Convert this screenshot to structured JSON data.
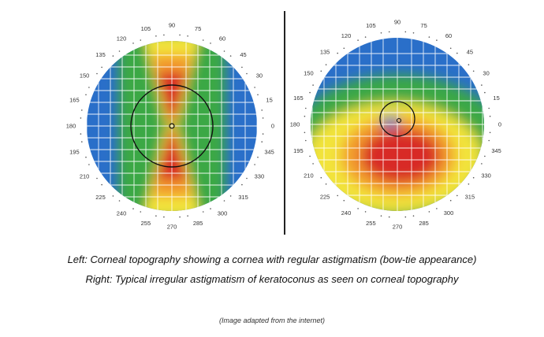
{
  "left_map": {
    "degree_labels": [
      {
        "deg": 0,
        "text": "0"
      },
      {
        "deg": 15,
        "text": "15"
      },
      {
        "deg": 30,
        "text": "30"
      },
      {
        "deg": 45,
        "text": "45"
      },
      {
        "deg": 60,
        "text": "60"
      },
      {
        "deg": 75,
        "text": "75"
      },
      {
        "deg": 90,
        "text": "90"
      },
      {
        "deg": 105,
        "text": "105"
      },
      {
        "deg": 120,
        "text": "120"
      },
      {
        "deg": 135,
        "text": "135"
      },
      {
        "deg": 150,
        "text": "150"
      },
      {
        "deg": 165,
        "text": "165"
      },
      {
        "deg": 180,
        "text": "180"
      },
      {
        "deg": 195,
        "text": "195"
      },
      {
        "deg": 210,
        "text": "210"
      },
      {
        "deg": 225,
        "text": "225"
      },
      {
        "deg": 240,
        "text": "240"
      },
      {
        "deg": 255,
        "text": "255"
      },
      {
        "deg": 270,
        "text": "270"
      },
      {
        "deg": 285,
        "text": "285"
      },
      {
        "deg": 300,
        "text": "300"
      },
      {
        "deg": 315,
        "text": "315"
      },
      {
        "deg": 330,
        "text": "330"
      },
      {
        "deg": 345,
        "text": "345"
      }
    ]
  },
  "right_map": {
    "degree_labels": [
      {
        "deg": 0,
        "text": "0"
      },
      {
        "deg": 15,
        "text": "15"
      },
      {
        "deg": 30,
        "text": "30"
      },
      {
        "deg": 45,
        "text": "45"
      },
      {
        "deg": 60,
        "text": "60"
      },
      {
        "deg": 75,
        "text": "75"
      },
      {
        "deg": 90,
        "text": "90"
      },
      {
        "deg": 105,
        "text": "105"
      },
      {
        "deg": 120,
        "text": "120"
      },
      {
        "deg": 135,
        "text": "135"
      },
      {
        "deg": 150,
        "text": "150"
      },
      {
        "deg": 165,
        "text": "165"
      },
      {
        "deg": 180,
        "text": "180"
      },
      {
        "deg": 195,
        "text": "195"
      },
      {
        "deg": 210,
        "text": "210"
      },
      {
        "deg": 225,
        "text": "225"
      },
      {
        "deg": 240,
        "text": "240"
      },
      {
        "deg": 255,
        "text": "255"
      },
      {
        "deg": 270,
        "text": "270"
      },
      {
        "deg": 285,
        "text": "285"
      },
      {
        "deg": 300,
        "text": "300"
      },
      {
        "deg": 315,
        "text": "315"
      },
      {
        "deg": 330,
        "text": "330"
      },
      {
        "deg": 345,
        "text": "345"
      }
    ]
  },
  "colors": {
    "blue": "#2a6fc9",
    "green": "#3aa844",
    "yellow": "#f2e33a",
    "orange": "#f29a2e",
    "red": "#d82a25",
    "grid": "#ffffff",
    "divider": "#222222"
  },
  "captions": {
    "line1": "Left: Corneal topography showing a cornea with regular astigmatism (bow-tie appearance)",
    "line2": "Right: Typical irregular astigmatism of keratoconus as seen on corneal topography",
    "credit": "(Image adapted from the internet)"
  }
}
